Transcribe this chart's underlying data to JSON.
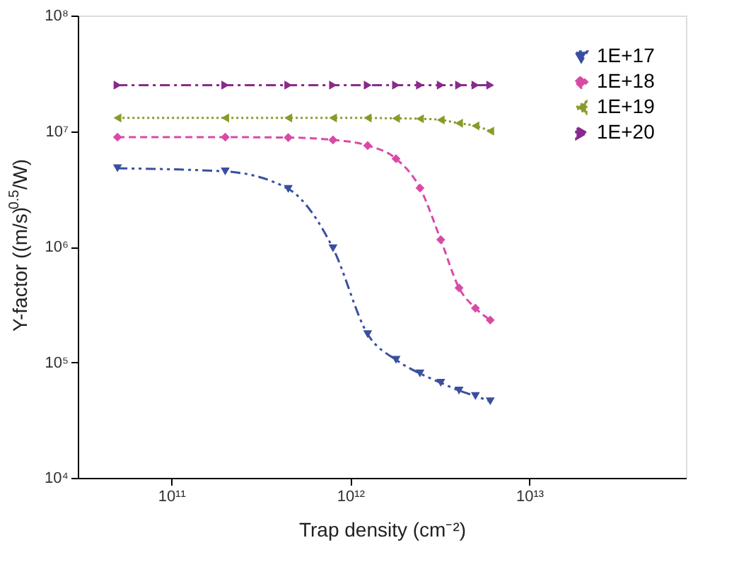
{
  "chart_data": {
    "type": "line",
    "xlabel": "Trap density (cm⁻²)",
    "ylabel": "Y-factor ((m/s)$^{0.5}$/W)",
    "x": [
      50000000000.0,
      200000000000.0,
      450000000000.0,
      800000000000.0,
      1250000000000.0,
      1800000000000.0,
      2450000000000.0,
      3200000000000.0,
      4050000000000.0,
      5000000000000.0,
      6050000000000.0
    ],
    "series": [
      {
        "name": "1E+17",
        "color": "#3a4fa0",
        "marker": "triangle-down",
        "line_style": "dashdotdot",
        "values": [
          4770000.0,
          4480000.0,
          3160000.0,
          970000.0,
          175000.0,
          105000.0,
          80000.0,
          66500.0,
          57000.0,
          51000.0,
          46000.0
        ]
      },
      {
        "name": "1E+18",
        "color": "#d94aa6",
        "marker": "diamond",
        "line_style": "dashed",
        "values": [
          8870000.0,
          8870000.0,
          8800000.0,
          8400000.0,
          7500000.0,
          5770000.0,
          3220000.0,
          1150000.0,
          440000.0,
          294000.0,
          232000.0
        ]
      },
      {
        "name": "1E+19",
        "color": "#8a9a2a",
        "marker": "triangle-left",
        "line_style": "dotted",
        "values": [
          13000000.0,
          13000000.0,
          13000000.0,
          13000000.0,
          13000000.0,
          12900000.0,
          12800000.0,
          12500000.0,
          11700000.0,
          11100000.0,
          10000000.0
        ]
      },
      {
        "name": "1E+20",
        "color": "#8a2a8a",
        "marker": "triangle-right",
        "line_style": "dashdot",
        "values": [
          25000000.0,
          25000000.0,
          25000000.0,
          25000000.0,
          25000000.0,
          25000000.0,
          25000000.0,
          25000000.0,
          25000000.0,
          25000000.0,
          25000000.0
        ]
      }
    ],
    "log": "xy",
    "xlim": [
      30000000000.0,
      75000000000000.0
    ],
    "ylim": [
      10000.0,
      100000000.0
    ],
    "xticks": [
      {
        "value": 100000000000.0,
        "label": "10¹¹"
      },
      {
        "value": 1000000000000.0,
        "label": "10¹²"
      },
      {
        "value": 10000000000000.0,
        "label": "10¹³"
      }
    ],
    "yticks": [
      {
        "value": 10000.0,
        "label": "10⁴"
      },
      {
        "value": 100000.0,
        "label": "10⁵"
      },
      {
        "value": 1000000.0,
        "label": "10⁶"
      },
      {
        "value": 10000000.0,
        "label": "10⁷"
      },
      {
        "value": 100000000.0,
        "label": "10⁸"
      }
    ],
    "grid": false,
    "legend": "top right"
  }
}
